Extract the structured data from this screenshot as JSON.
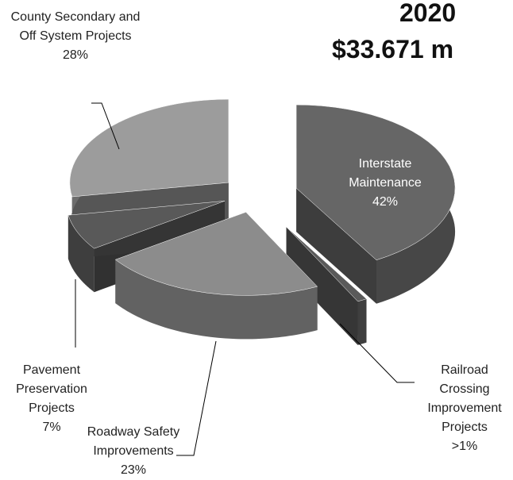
{
  "chart_data": {
    "type": "pie",
    "title": "2020",
    "subtitle": "$33.671 m",
    "categories": [
      "Interstate Maintenance",
      "Railroad Crossing Improvement Projects",
      "Roadway Safety Improvements",
      "Pavement Preservation Projects",
      "County Secondary and Off System Projects"
    ],
    "values": [
      42,
      1,
      23,
      7,
      28
    ],
    "value_labels": [
      "42%",
      ">1%",
      "23%",
      "7%",
      "28%"
    ],
    "colors": [
      "#666666",
      "#5a5a5a",
      "#8c8c8c",
      "#595959",
      "#9c9c9c"
    ]
  }
}
